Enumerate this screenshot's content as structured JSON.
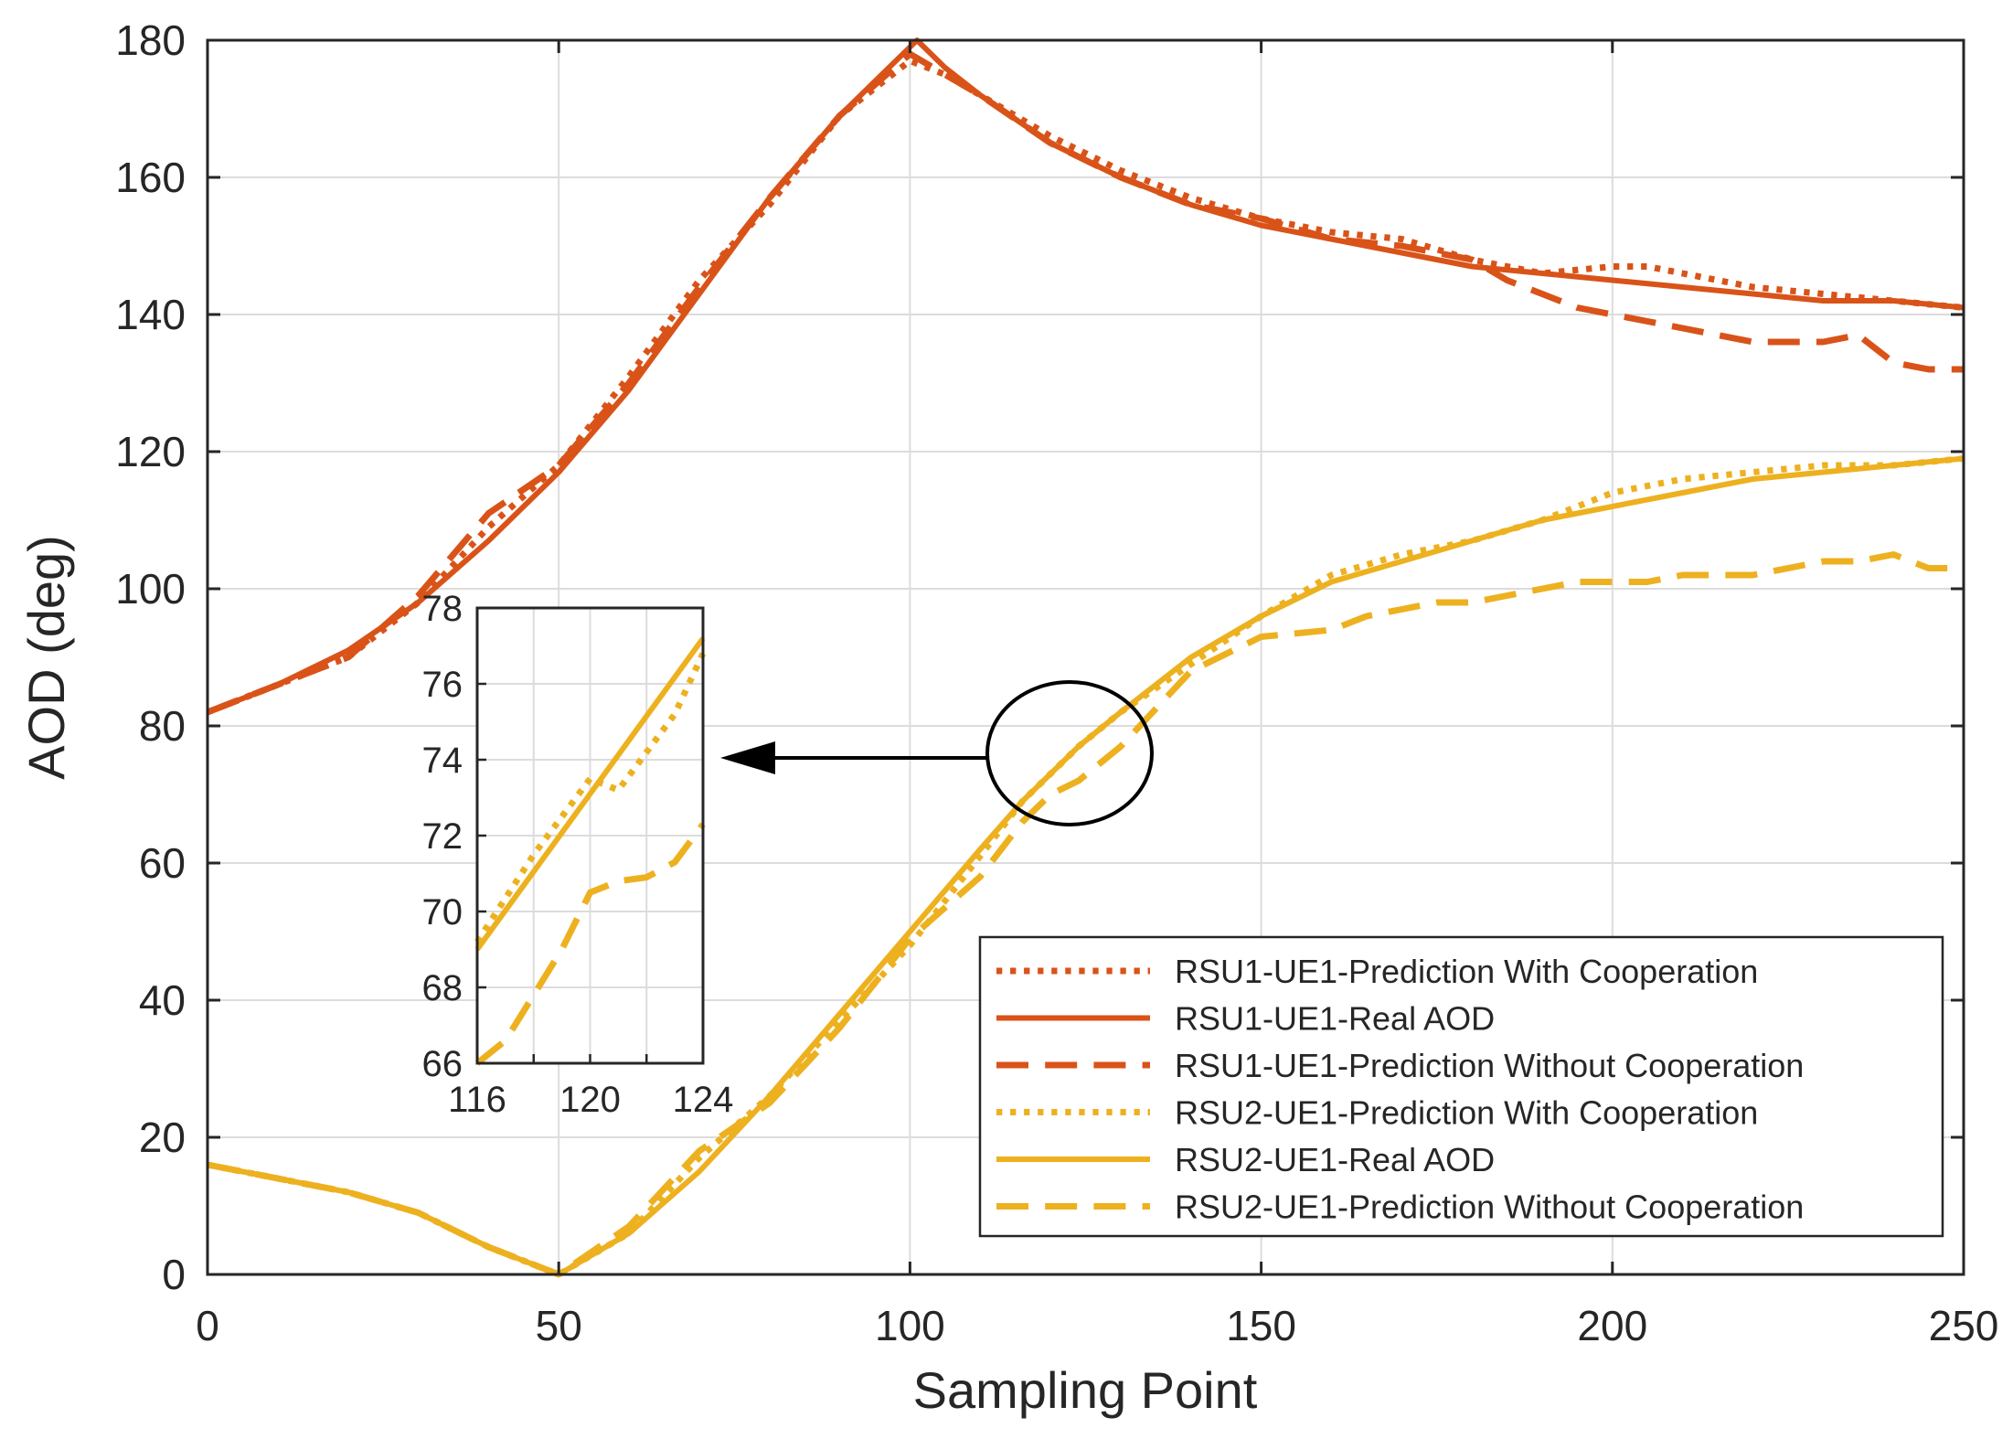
{
  "chart_data": {
    "type": "line",
    "title": "",
    "xlabel": "Sampling Point",
    "ylabel": "AOD (deg)",
    "xlim": [
      0,
      250
    ],
    "ylim": [
      0,
      180
    ],
    "xticks": [
      0,
      50,
      100,
      150,
      200,
      250
    ],
    "yticks": [
      0,
      20,
      40,
      60,
      80,
      100,
      120,
      140,
      160,
      180
    ],
    "grid": true,
    "legend_position": "bottom-right",
    "colors": {
      "rsu1": "#D95319",
      "rsu2": "#EDB120"
    },
    "series": [
      {
        "name": "RSU1-UE1-Prediction With Cooperation",
        "color": "#D95319",
        "style": "dotted",
        "x": [
          0,
          10,
          20,
          30,
          40,
          50,
          60,
          70,
          80,
          90,
          100,
          105,
          110,
          120,
          130,
          140,
          150,
          160,
          170,
          180,
          190,
          200,
          205,
          210,
          220,
          230,
          240,
          250
        ],
        "y": [
          82,
          86,
          90,
          98,
          109,
          118,
          131,
          145,
          156,
          169,
          177,
          175,
          172,
          166,
          161,
          157,
          154,
          152,
          151,
          148,
          146,
          147,
          147,
          146,
          144,
          143,
          142,
          141
        ]
      },
      {
        "name": "RSU1-UE1-Real AOD",
        "color": "#D95319",
        "style": "solid",
        "x": [
          0,
          10,
          20,
          30,
          40,
          50,
          60,
          70,
          80,
          90,
          100,
          101,
          105,
          110,
          120,
          130,
          140,
          150,
          160,
          170,
          180,
          190,
          200,
          210,
          220,
          230,
          240,
          250
        ],
        "y": [
          82,
          86,
          91,
          98,
          107,
          117,
          129,
          143,
          157,
          169,
          179,
          180,
          176,
          172,
          165,
          160,
          156,
          153,
          151,
          149,
          147,
          146,
          145,
          144,
          143,
          142,
          142,
          141
        ]
      },
      {
        "name": "RSU1-UE1-Prediction Without Cooperation",
        "color": "#D95319",
        "style": "dashed",
        "x": [
          0,
          10,
          20,
          30,
          40,
          50,
          60,
          70,
          80,
          90,
          100,
          105,
          110,
          120,
          130,
          140,
          150,
          160,
          170,
          180,
          185,
          190,
          195,
          200,
          205,
          210,
          215,
          220,
          230,
          235,
          240,
          245,
          250
        ],
        "y": [
          82,
          86,
          90,
          99,
          111,
          118,
          130,
          144,
          157,
          169,
          178,
          175,
          172,
          165,
          160,
          156,
          154,
          151,
          150,
          148,
          145,
          143,
          141,
          140,
          139,
          138,
          137,
          136,
          136,
          137,
          133,
          132,
          132
        ]
      },
      {
        "name": "RSU2-UE1-Prediction With Cooperation",
        "color": "#EDB120",
        "style": "dotted",
        "x": [
          0,
          10,
          20,
          30,
          40,
          50,
          60,
          70,
          80,
          90,
          100,
          110,
          116,
          120,
          124,
          130,
          140,
          150,
          160,
          170,
          180,
          190,
          200,
          210,
          220,
          230,
          240,
          250
        ],
        "y": [
          16,
          14,
          12,
          9,
          4,
          0,
          6,
          17,
          26,
          37,
          48,
          61,
          69,
          73,
          77,
          82,
          89,
          96,
          102,
          105,
          107,
          110,
          114,
          116,
          117,
          118,
          118,
          119
        ]
      },
      {
        "name": "RSU2-UE1-Real AOD",
        "color": "#EDB120",
        "style": "solid",
        "x": [
          0,
          10,
          20,
          30,
          40,
          50,
          60,
          70,
          80,
          90,
          100,
          110,
          116,
          120,
          124,
          130,
          140,
          150,
          160,
          170,
          180,
          190,
          200,
          210,
          220,
          230,
          240,
          250
        ],
        "y": [
          16,
          14,
          12,
          9,
          4,
          0,
          6,
          15,
          26,
          38,
          50,
          62,
          69,
          73,
          77,
          82,
          90,
          96,
          101,
          104,
          107,
          110,
          112,
          114,
          116,
          117,
          118,
          119
        ]
      },
      {
        "name": "RSU2-UE1-Prediction Without Cooperation",
        "color": "#EDB120",
        "style": "dashed",
        "x": [
          0,
          10,
          20,
          30,
          40,
          50,
          60,
          70,
          80,
          90,
          100,
          110,
          116,
          118,
          120,
          122,
          124,
          130,
          140,
          150,
          160,
          165,
          170,
          175,
          180,
          185,
          190,
          195,
          200,
          205,
          210,
          215,
          220,
          225,
          230,
          235,
          240,
          245,
          250
        ],
        "y": [
          16,
          14,
          12,
          9,
          4,
          0,
          7,
          18,
          25,
          36,
          49,
          58,
          66,
          68,
          70,
          71,
          72,
          77,
          88,
          93,
          94,
          96,
          97,
          98,
          98,
          99,
          100,
          101,
          101,
          101,
          102,
          102,
          102,
          103,
          104,
          104,
          105,
          103,
          103
        ]
      }
    ],
    "inset": {
      "xlim": [
        116,
        124
      ],
      "ylim": [
        66,
        78
      ],
      "xticks": [
        116,
        120,
        124
      ],
      "yticks": [
        66,
        68,
        70,
        72,
        74,
        76,
        78
      ],
      "series": [
        {
          "name": "RSU2-UE1-Real AOD",
          "style": "solid",
          "color": "#EDB120",
          "x": [
            116,
            124
          ],
          "y": [
            69,
            77.2
          ]
        },
        {
          "name": "RSU2-UE1-Prediction With Cooperation",
          "style": "dotted",
          "color": "#EDB120",
          "x": [
            116,
            118,
            120,
            121,
            122,
            123,
            124
          ],
          "y": [
            69.2,
            71.5,
            73.5,
            73.2,
            74.2,
            75.2,
            76.8
          ]
        },
        {
          "name": "RSU2-UE1-Prediction Without Cooperation",
          "style": "dashed",
          "color": "#EDB120",
          "x": [
            116,
            117,
            118,
            119,
            120,
            121,
            122,
            123,
            124
          ],
          "y": [
            66,
            66.6,
            67.8,
            69,
            70.5,
            70.8,
            70.9,
            71.3,
            72.3
          ]
        }
      ]
    }
  }
}
